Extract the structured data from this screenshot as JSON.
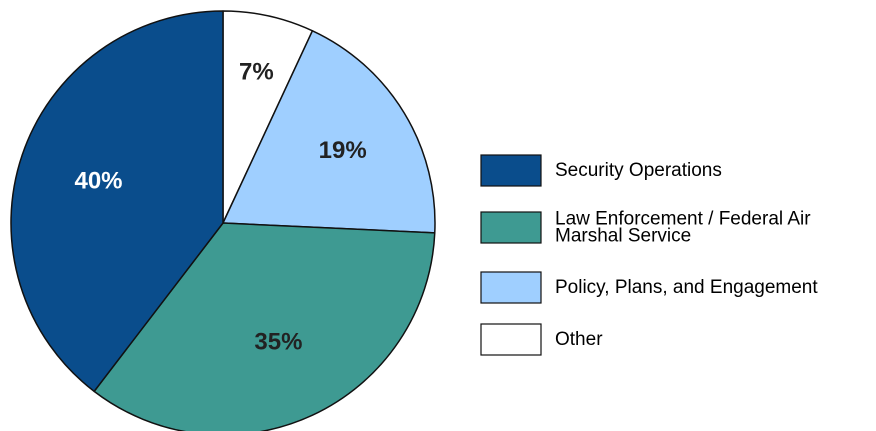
{
  "chart_data": {
    "type": "pie",
    "title": "",
    "start_angle": "12 o'clock",
    "direction": "clockwise",
    "slices": [
      {
        "label": "Other",
        "value": 7,
        "display": "7%",
        "color": "#ffffff",
        "label_color": "#222222"
      },
      {
        "label": "Policy, Plans, and Engagement",
        "value": 19,
        "display": "19%",
        "color": "#9fcfff",
        "label_color": "#222222"
      },
      {
        "label": "Law Enforcement / Federal Air Marshal Service",
        "value": 35,
        "display": "35%",
        "color": "#3e9a92",
        "label_color": "#222222"
      },
      {
        "label": "Security Operations",
        "value": 40,
        "display": "40%",
        "color": "#0a4d8c",
        "label_color": "#ffffff"
      }
    ],
    "legend": {
      "placement": "right",
      "order": [
        "Security Operations",
        "Law Enforcement / Federal Air Marshal Service",
        "Policy, Plans, and Engagement",
        "Other"
      ],
      "line_breaks": {
        "Law Enforcement / Federal Air Marshal Service": [
          "Law Enforcement / Federal Air",
          "Marshal Service"
        ]
      }
    }
  }
}
